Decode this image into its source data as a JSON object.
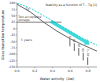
{
  "chart_data": {
    "type": "line",
    "title": "Stability as a function of T – Tg [1]",
    "x_label": "Water activity  (Aw)",
    "y_label": "Glass transition temperature",
    "xlim": [
      0.0,
      0.9
    ],
    "ylim": [
      -150,
      100
    ],
    "xticks": [
      {
        "value": 0.0,
        "label": "0.0"
      },
      0.2,
      0.4,
      0.6,
      0.8
    ],
    "yticks": [
      -150,
      -125,
      -100,
      -75,
      -50,
      -25,
      0,
      25,
      50,
      75,
      100
    ],
    "series": [
      {
        "type": "line",
        "line_style": "dashed",
        "color": "#00CCCC",
        "x": [
          0.0,
          0.15,
          0.3,
          0.45,
          0.6,
          0.75,
          0.9
        ],
        "values": [
          100,
          80,
          50,
          20,
          -10,
          -40,
          -65
        ]
      },
      {
        "type": "line",
        "line_style": "solid",
        "color": "#444444",
        "x": [
          0.0,
          0.15,
          0.3,
          0.45,
          0.6,
          0.75,
          0.9
        ],
        "values": [
          95,
          65,
          25,
          -10,
          -40,
          -65,
          -88
        ]
      },
      {
        "type": "line",
        "line_style": "solid",
        "color": "#666666",
        "x": [
          0.0,
          0.5
        ],
        "values": [
          25,
          25
        ]
      },
      {
        "type": "arrow",
        "color": "#00CCCC",
        "x": [
          0.38,
          0.82
        ],
        "values": [
          28,
          -62
        ]
      },
      {
        "type": "range",
        "color": "#444444",
        "x": [
          0.595,
          0.645,
          0.695,
          0.745,
          0.795
        ],
        "values": [
          -39,
          -57.5,
          -75.83333333333333,
          -94.16666666666667,
          -111.9
        ],
        "low": [
          -69,
          -87.5,
          -105.83333333333333,
          -124.16666666666667,
          -141.9
        ],
        "labels": [
          "0",
          "10",
          "20",
          "30",
          "40 °C"
        ]
      }
    ],
    "annotations": [
      "Two acceptable\nstorage",
      "5 years",
      "Tg"
    ]
  }
}
